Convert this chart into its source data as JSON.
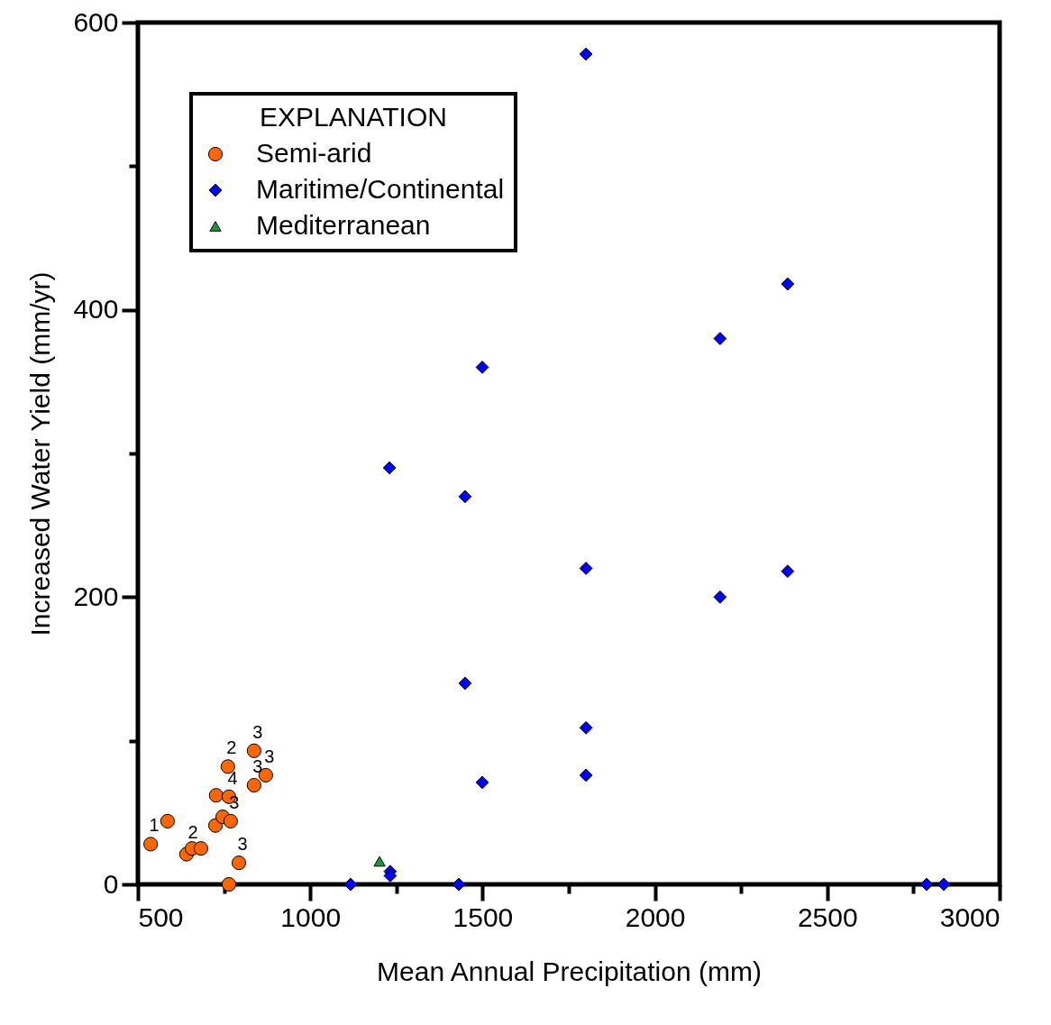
{
  "chart_data": {
    "type": "scatter",
    "xlabel": "Mean Annual Precipitation (mm)",
    "ylabel": "Increased Water Yield (mm/yr)",
    "legend_title": "EXPLANATION",
    "legend": "top left",
    "grid": false,
    "xlim": [
      500,
      3000
    ],
    "ylim": [
      0,
      600
    ],
    "xticks": [
      500,
      {
        "value": 750,
        "label": null
      },
      1000,
      {
        "value": 1250,
        "label": null
      },
      1500,
      {
        "value": 1750,
        "label": null
      },
      2000,
      {
        "value": 2250,
        "label": null
      },
      2500,
      {
        "value": 2750,
        "label": null
      },
      3000
    ],
    "yticks": [
      0,
      {
        "value": 100,
        "label": null
      },
      200,
      {
        "value": 300,
        "label": null
      },
      400,
      {
        "value": 500,
        "label": null
      },
      600
    ],
    "series": [
      {
        "name": "Semi-arid",
        "color": "#ff6600",
        "marker": "circle",
        "x": [
          537,
          586,
          641,
          657,
          683,
          725,
          727,
          746,
          769,
          764,
          761,
          793,
          764,
          837,
          837,
          871
        ],
        "values": [
          28,
          44,
          21,
          25,
          25,
          41,
          62,
          47,
          44,
          61,
          82,
          15,
          0,
          93,
          69,
          76
        ]
      },
      {
        "name": "Maritime/Continental",
        "color": "#0000ff",
        "marker": "diamond",
        "x": [
          1800,
          2385,
          2189,
          1499,
          1230,
          1449,
          1800,
          2385,
          2189,
          1449,
          1800,
          1499,
          1800,
          1117,
          1232,
          1232,
          1431,
          2788,
          2838
        ],
        "values": [
          578,
          418,
          380,
          360,
          290,
          270,
          220,
          218,
          200,
          140,
          109,
          71,
          76,
          0,
          9,
          6,
          0,
          0,
          0
        ]
      },
      {
        "name": "Mediterranean",
        "color": "#1a9a3a",
        "marker": "triangle",
        "x": [
          1201
        ],
        "values": [
          16
        ]
      }
    ],
    "annotations": [
      {
        "text": "1",
        "x": 537,
        "y": 28
      },
      {
        "text": "2",
        "x": 649,
        "y": 23
      },
      {
        "text": "2",
        "x": 761,
        "y": 82
      },
      {
        "text": "4",
        "x": 764,
        "y": 61
      },
      {
        "text": "3",
        "x": 769,
        "y": 44
      },
      {
        "text": "3",
        "x": 793,
        "y": 15
      },
      {
        "text": "3",
        "x": 837,
        "y": 93
      },
      {
        "text": "3",
        "x": 837,
        "y": 69
      },
      {
        "text": "3",
        "x": 871,
        "y": 76
      }
    ]
  }
}
